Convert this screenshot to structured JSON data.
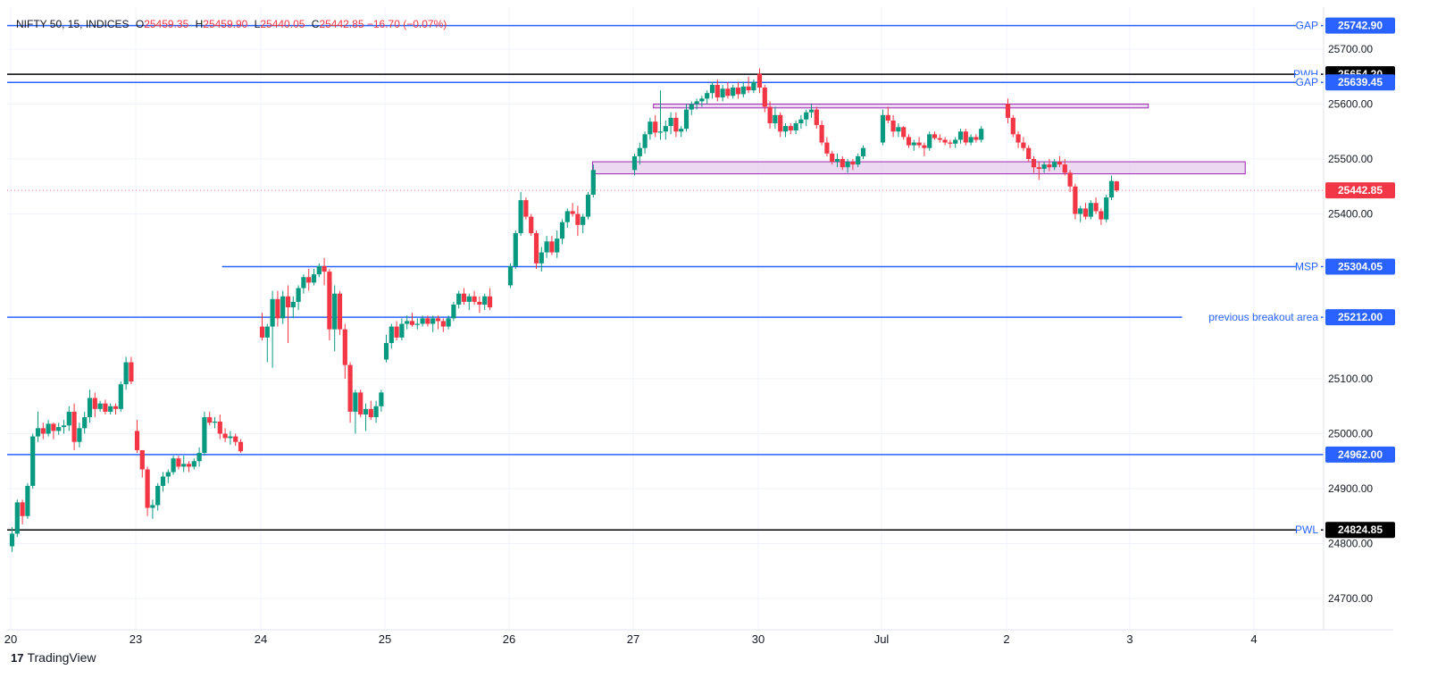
{
  "header": {
    "symbol": "NIFTY 50, 15, INDICES",
    "o_label": "O",
    "o_value": "25459.35",
    "h_label": "H",
    "h_value": "25459.90",
    "l_label": "L",
    "l_value": "25440.05",
    "c_label": "C",
    "c_value": "25442.85",
    "change": "−16.70 (−0.07%)"
  },
  "footer": {
    "brand_icon": "17",
    "brand": "TradingView"
  },
  "colors": {
    "up": "#089981",
    "down": "#f23645",
    "blue_line": "#2962ff",
    "black_line": "#000000",
    "zone_fill": "#e1bee7",
    "zone_stroke": "#9c27b0",
    "axis_text": "#131722",
    "grid": "#f0f3fa"
  },
  "chart_data": {
    "type": "candlestick",
    "y_range": [
      24660,
      25770
    ],
    "y_ticks": [
      "25700.00",
      "25600.00",
      "25500.00",
      "25400.00",
      "25100.00",
      "25000.00",
      "24900.00",
      "24800.00",
      "24700.00"
    ],
    "x_ticks": [
      "20",
      "23",
      "24",
      "25",
      "26",
      "27",
      "30",
      "Jul",
      "2",
      "3",
      "4"
    ],
    "last_price": "25442.85",
    "levels": [
      {
        "label": "GAP",
        "value": 25742.9,
        "price": "25742.90",
        "color": "blue",
        "from_session": 0
      },
      {
        "label": "PWH",
        "value": 25654.2,
        "price": "25654.20",
        "color": "black",
        "from_session": 0
      },
      {
        "label": "GAP",
        "value": 25639.45,
        "price": "25639.45",
        "color": "blue",
        "from_session": 0
      },
      {
        "label": "MSP",
        "value": 25304.05,
        "price": "25304.05",
        "color": "blue",
        "from_session": 1.7
      },
      {
        "label": "previous breakout area",
        "value": 25212.0,
        "price": "25212.00",
        "color": "blue",
        "from_session": 0
      },
      {
        "label": "",
        "value": 24962.0,
        "price": "24962.00",
        "color": "blue",
        "from_session": 0
      },
      {
        "label": "PWL",
        "value": 24824.85,
        "price": "24824.85",
        "color": "black",
        "from_session": 0
      }
    ],
    "zones": [
      {
        "from_session": 5.17,
        "to_session": 9.15,
        "top": 25600,
        "bottom": 25593
      },
      {
        "from_session": 4.68,
        "to_session": 9.93,
        "top": 25495,
        "bottom": 25473
      }
    ],
    "candles": [
      [
        "20",
        24795,
        24830,
        24785,
        24818
      ],
      [
        "20",
        24818,
        24880,
        24812,
        24875
      ],
      [
        "20",
        24875,
        24880,
        24835,
        24850
      ],
      [
        "20",
        24850,
        24910,
        24845,
        24905
      ],
      [
        "20",
        24905,
        25000,
        24900,
        24995
      ],
      [
        "20",
        24995,
        25040,
        24985,
        25010
      ],
      [
        "20",
        25010,
        25020,
        24990,
        25000
      ],
      [
        "20",
        25000,
        25025,
        24995,
        25018
      ],
      [
        "20",
        25018,
        25020,
        24990,
        25005
      ],
      [
        "20",
        25005,
        25020,
        24998,
        25012
      ],
      [
        "20",
        25012,
        25025,
        25000,
        25015
      ],
      [
        "20",
        25015,
        25050,
        25005,
        25040
      ],
      [
        "20",
        25040,
        25055,
        24970,
        24985
      ],
      [
        "20",
        24985,
        25020,
        24975,
        25010
      ],
      [
        "20",
        25010,
        25040,
        25000,
        25030
      ],
      [
        "20",
        25030,
        25080,
        25020,
        25065
      ],
      [
        "20",
        25065,
        25075,
        25030,
        25045
      ],
      [
        "20",
        25045,
        25060,
        25040,
        25055
      ],
      [
        "20",
        25055,
        25062,
        25035,
        25040
      ],
      [
        "20",
        25040,
        25055,
        25035,
        25050
      ],
      [
        "20",
        25050,
        25055,
        25035,
        25045
      ],
      [
        "20",
        25045,
        25095,
        25040,
        25090
      ],
      [
        "20",
        25090,
        25140,
        25080,
        25130
      ],
      [
        "20",
        25130,
        25140,
        25090,
        25095
      ],
      [
        "23",
        25005,
        25025,
        24965,
        24970
      ],
      [
        "23",
        24970,
        24970,
        24920,
        24935
      ],
      [
        "23",
        24935,
        24940,
        24850,
        24865
      ],
      [
        "23",
        24865,
        24880,
        24845,
        24870
      ],
      [
        "23",
        24870,
        24910,
        24860,
        24905
      ],
      [
        "23",
        24905,
        24930,
        24895,
        24922
      ],
      [
        "23",
        24922,
        24935,
        24910,
        24930
      ],
      [
        "23",
        24930,
        24960,
        24925,
        24955
      ],
      [
        "23",
        24955,
        24960,
        24935,
        24940
      ],
      [
        "23",
        24940,
        24960,
        24930,
        24945
      ],
      [
        "23",
        24945,
        24950,
        24930,
        24940
      ],
      [
        "23",
        24940,
        24955,
        24935,
        24950
      ],
      [
        "23",
        24950,
        24975,
        24940,
        24965
      ],
      [
        "23",
        24965,
        25040,
        24960,
        25030
      ],
      [
        "23",
        25030,
        25040,
        25015,
        25020
      ],
      [
        "23",
        25020,
        25030,
        25010,
        25022
      ],
      [
        "23",
        25022,
        25035,
        24990,
        25000
      ],
      [
        "23",
        25000,
        25010,
        24985,
        24992
      ],
      [
        "23",
        24992,
        25005,
        24980,
        24995
      ],
      [
        "23",
        24995,
        25000,
        24978,
        24985
      ],
      [
        "23",
        24985,
        24990,
        24965,
        24968
      ],
      [
        "24",
        25195,
        25220,
        25170,
        25175
      ],
      [
        "24",
        25175,
        25200,
        25130,
        25195
      ],
      [
        "24",
        25195,
        25260,
        25120,
        25245
      ],
      [
        "24",
        25245,
        25260,
        25195,
        25210
      ],
      [
        "24",
        25210,
        25260,
        25200,
        25250
      ],
      [
        "24",
        25250,
        25270,
        25165,
        25230
      ],
      [
        "24",
        25230,
        25250,
        25210,
        25240
      ],
      [
        "24",
        25240,
        25270,
        25225,
        25265
      ],
      [
        "24",
        25265,
        25290,
        25255,
        25285
      ],
      [
        "24",
        25285,
        25300,
        25260,
        25275
      ],
      [
        "24",
        25275,
        25300,
        25270,
        25290
      ],
      [
        "24",
        25290,
        25310,
        25285,
        25305
      ],
      [
        "24",
        25305,
        25320,
        25270,
        25295
      ],
      [
        "24",
        25295,
        25300,
        25170,
        25190
      ],
      [
        "24",
        25190,
        25270,
        25150,
        25255
      ],
      [
        "24",
        25255,
        25260,
        25180,
        25190
      ],
      [
        "24",
        25190,
        25200,
        25100,
        25125
      ],
      [
        "24",
        25125,
        25130,
        25020,
        25040
      ],
      [
        "24",
        25040,
        25080,
        25000,
        25075
      ],
      [
        "24",
        25075,
        25080,
        25030,
        25035
      ],
      [
        "24",
        25035,
        25055,
        25005,
        25045
      ],
      [
        "24",
        25045,
        25060,
        25025,
        25030
      ],
      [
        "24",
        25030,
        25060,
        25020,
        25050
      ],
      [
        "24",
        25050,
        25080,
        25040,
        25075
      ],
      [
        "25",
        25135,
        25180,
        25130,
        25165
      ],
      [
        "25",
        25165,
        25200,
        25155,
        25195
      ],
      [
        "25",
        25195,
        25205,
        25170,
        25175
      ],
      [
        "25",
        25175,
        25210,
        25170,
        25200
      ],
      [
        "25",
        25200,
        25215,
        25190,
        25205
      ],
      [
        "25",
        25205,
        25220,
        25195,
        25198
      ],
      [
        "25",
        25198,
        25210,
        25190,
        25200
      ],
      [
        "25",
        25200,
        25215,
        25195,
        25210
      ],
      [
        "25",
        25210,
        25215,
        25195,
        25200
      ],
      [
        "25",
        25200,
        25215,
        25185,
        25210
      ],
      [
        "25",
        25210,
        25215,
        25190,
        25205
      ],
      [
        "25",
        25205,
        25210,
        25185,
        25195
      ],
      [
        "25",
        25195,
        25215,
        25190,
        25210
      ],
      [
        "25",
        25210,
        25240,
        25205,
        25235
      ],
      [
        "25",
        25235,
        25260,
        25228,
        25255
      ],
      [
        "25",
        25255,
        25265,
        25235,
        25240
      ],
      [
        "25",
        25240,
        25255,
        25225,
        25250
      ],
      [
        "25",
        25250,
        25260,
        25235,
        25240
      ],
      [
        "25",
        25240,
        25250,
        25220,
        25235
      ],
      [
        "25",
        25235,
        25255,
        25225,
        25250
      ],
      [
        "25",
        25250,
        25265,
        25225,
        25230
      ],
      [
        "26",
        25270,
        25310,
        25265,
        25305
      ],
      [
        "26",
        25305,
        25370,
        25300,
        25365
      ],
      [
        "26",
        25365,
        25440,
        25360,
        25425
      ],
      [
        "26",
        25425,
        25430,
        25390,
        25395
      ],
      [
        "26",
        25395,
        25400,
        25360,
        25365
      ],
      [
        "26",
        25365,
        25370,
        25300,
        25310
      ],
      [
        "26",
        25310,
        25340,
        25295,
        25330
      ],
      [
        "26",
        25330,
        25360,
        25320,
        25350
      ],
      [
        "26",
        25350,
        25360,
        25325,
        25330
      ],
      [
        "26",
        25330,
        25370,
        25320,
        25355
      ],
      [
        "26",
        25355,
        25390,
        25345,
        25385
      ],
      [
        "26",
        25385,
        25410,
        25375,
        25405
      ],
      [
        "26",
        25405,
        25420,
        25395,
        25400
      ],
      [
        "26",
        25400,
        25415,
        25360,
        25380
      ],
      [
        "26",
        25380,
        25400,
        25365,
        25395
      ],
      [
        "26",
        25395,
        25440,
        25390,
        25435
      ],
      [
        "26",
        25435,
        25490,
        25430,
        25480
      ],
      [
        "27",
        25480,
        25510,
        25470,
        25505
      ],
      [
        "27",
        25505,
        25530,
        25490,
        25520
      ],
      [
        "27",
        25520,
        25550,
        25510,
        25545
      ],
      [
        "27",
        25545,
        25575,
        25535,
        25568
      ],
      [
        "27",
        25568,
        25580,
        25540,
        25548
      ],
      [
        "27",
        25548,
        25625,
        25535,
        25550
      ],
      [
        "27",
        25550,
        25570,
        25535,
        25560
      ],
      [
        "27",
        25560,
        25585,
        25545,
        25575
      ],
      [
        "27",
        25575,
        25585,
        25540,
        25550
      ],
      [
        "27",
        25550,
        25560,
        25540,
        25555
      ],
      [
        "27",
        25555,
        25600,
        25550,
        25590
      ],
      [
        "27",
        25590,
        25605,
        25580,
        25600
      ],
      [
        "27",
        25600,
        25610,
        25590,
        25605
      ],
      [
        "27",
        25605,
        25615,
        25595,
        25610
      ],
      [
        "27",
        25610,
        25625,
        25600,
        25620
      ],
      [
        "27",
        25620,
        25640,
        25610,
        25635
      ],
      [
        "27",
        25635,
        25645,
        25605,
        25612
      ],
      [
        "27",
        25612,
        25635,
        25605,
        25628
      ],
      [
        "27",
        25628,
        25640,
        25610,
        25615
      ],
      [
        "27",
        25615,
        25635,
        25610,
        25630
      ],
      [
        "27",
        25630,
        25640,
        25610,
        25618
      ],
      [
        "27",
        25618,
        25640,
        25612,
        25632
      ],
      [
        "27",
        25632,
        25650,
        25620,
        25625
      ],
      [
        "27",
        25625,
        25645,
        25620,
        25640
      ],
      [
        "30",
        25655,
        25665,
        25620,
        25630
      ],
      [
        "30",
        25630,
        25635,
        25585,
        25595
      ],
      [
        "30",
        25595,
        25605,
        25555,
        25565
      ],
      [
        "30",
        25565,
        25595,
        25555,
        25580
      ],
      [
        "30",
        25580,
        25585,
        25540,
        25550
      ],
      [
        "30",
        25550,
        25565,
        25540,
        25560
      ],
      [
        "30",
        25560,
        25565,
        25545,
        25552
      ],
      [
        "30",
        25552,
        25570,
        25545,
        25565
      ],
      [
        "30",
        25565,
        25580,
        25555,
        25572
      ],
      [
        "30",
        25572,
        25590,
        25560,
        25585
      ],
      [
        "30",
        25585,
        25600,
        25575,
        25590
      ],
      [
        "30",
        25590,
        25595,
        25555,
        25562
      ],
      [
        "30",
        25562,
        25570,
        25525,
        25530
      ],
      [
        "30",
        25530,
        25540,
        25505,
        25510
      ],
      [
        "30",
        25510,
        25515,
        25490,
        25495
      ],
      [
        "30",
        25495,
        25510,
        25485,
        25500
      ],
      [
        "30",
        25500,
        25505,
        25480,
        25485
      ],
      [
        "30",
        25485,
        25500,
        25475,
        25495
      ],
      [
        "30",
        25495,
        25500,
        25480,
        25490
      ],
      [
        "30",
        25490,
        25510,
        25485,
        25505
      ],
      [
        "30",
        25505,
        25525,
        25500,
        25520
      ],
      [
        "Jul",
        25530,
        25590,
        25525,
        25580
      ],
      [
        "Jul",
        25580,
        25595,
        25565,
        25570
      ],
      [
        "Jul",
        25570,
        25580,
        25540,
        25550
      ],
      [
        "Jul",
        25550,
        25565,
        25540,
        25558
      ],
      [
        "Jul",
        25558,
        25560,
        25535,
        25540
      ],
      [
        "Jul",
        25540,
        25545,
        25520,
        25525
      ],
      [
        "Jul",
        25525,
        25535,
        25515,
        25530
      ],
      [
        "Jul",
        25530,
        25540,
        25520,
        25525
      ],
      [
        "Jul",
        25525,
        25530,
        25505,
        25520
      ],
      [
        "Jul",
        25520,
        25550,
        25515,
        25545
      ],
      [
        "Jul",
        25545,
        25550,
        25535,
        25538
      ],
      [
        "Jul",
        25538,
        25545,
        25530,
        25535
      ],
      [
        "Jul",
        25535,
        25540,
        25525,
        25530
      ],
      [
        "Jul",
        25530,
        25535,
        25520,
        25528
      ],
      [
        "Jul",
        25528,
        25540,
        25520,
        25535
      ],
      [
        "Jul",
        25535,
        25555,
        25528,
        25550
      ],
      [
        "Jul",
        25550,
        25555,
        25525,
        25530
      ],
      [
        "Jul",
        25530,
        25545,
        25525,
        25540
      ],
      [
        "Jul",
        25540,
        25545,
        25530,
        25535
      ],
      [
        "Jul",
        25535,
        25560,
        25530,
        25555
      ],
      [
        "2",
        25600,
        25610,
        25565,
        25575
      ],
      [
        "2",
        25575,
        25580,
        25540,
        25545
      ],
      [
        "2",
        25545,
        25550,
        25520,
        25530
      ],
      [
        "2",
        25530,
        25540,
        25515,
        25520
      ],
      [
        "2",
        25520,
        25525,
        25495,
        25500
      ],
      [
        "2",
        25500,
        25505,
        25475,
        25485
      ],
      [
        "2",
        25485,
        25495,
        25462,
        25482
      ],
      [
        "2",
        25482,
        25495,
        25475,
        25490
      ],
      [
        "2",
        25490,
        25500,
        25478,
        25485
      ],
      [
        "2",
        25485,
        25500,
        25480,
        25495
      ],
      [
        "2",
        25495,
        25505,
        25485,
        25490
      ],
      [
        "2",
        25490,
        25500,
        25470,
        25475
      ],
      [
        "2",
        25475,
        25480,
        25440,
        25450
      ],
      [
        "2",
        25450,
        25455,
        25390,
        25400
      ],
      [
        "2",
        25400,
        25415,
        25385,
        25410
      ],
      [
        "2",
        25410,
        25420,
        25390,
        25395
      ],
      [
        "2",
        25395,
        25425,
        25390,
        25420
      ],
      [
        "2",
        25420,
        25430,
        25400,
        25405
      ],
      [
        "2",
        25405,
        25410,
        25380,
        25390
      ],
      [
        "2",
        25390,
        25435,
        25385,
        25430
      ],
      [
        "2",
        25430,
        25470,
        25425,
        25460
      ],
      [
        "2",
        25459.35,
        25459.9,
        25440.05,
        25442.85
      ]
    ]
  }
}
